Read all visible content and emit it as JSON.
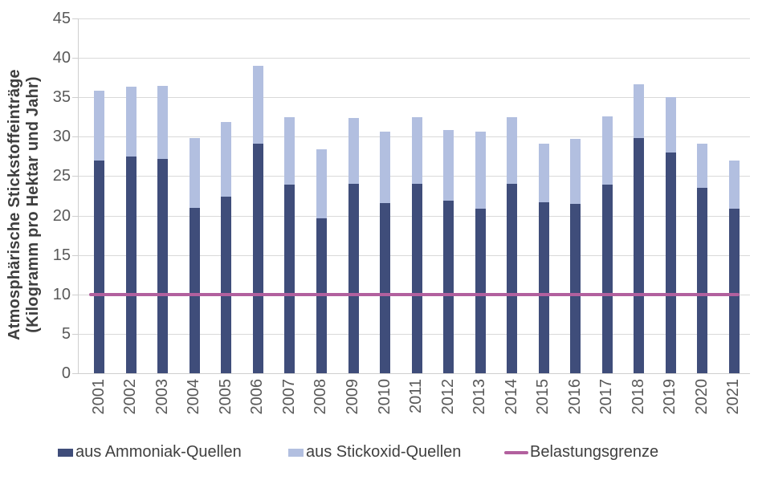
{
  "colors": {
    "background": "#ffffff",
    "gridline": "#d9d9d9",
    "axis_line": "#cfcfcf",
    "tick_text": "#595959",
    "legend_text": "#404040",
    "title_text": "#3f3f3f"
  },
  "y_axis": {
    "title_line1": "Atmosphärische Stickstoffeinträge",
    "title_line2": "(Kilogramm pro Hektar und Jahr)",
    "ticks": [
      0,
      5,
      10,
      15,
      20,
      25,
      30,
      35,
      40,
      45
    ]
  },
  "chart_data": {
    "type": "bar",
    "stacked": true,
    "title": "",
    "xlabel": "",
    "ylabel": "Atmosphärische Stickstoffeinträge (Kilogramm pro Hektar und Jahr)",
    "ylim": [
      0,
      45
    ],
    "ytick_step": 5,
    "grid": true,
    "legend_position": "bottom",
    "categories": [
      "2001",
      "2002",
      "2003",
      "2004",
      "2005",
      "2006",
      "2007",
      "2008",
      "2009",
      "2010",
      "2011",
      "2012",
      "2013",
      "2014",
      "2015",
      "2016",
      "2017",
      "2018",
      "2019",
      "2020",
      "2021"
    ],
    "series": [
      {
        "name": "aus Ammoniak-Quellen",
        "color": "#3f4d7a",
        "values": [
          27.0,
          27.5,
          27.2,
          21.0,
          22.4,
          29.1,
          23.9,
          19.7,
          24.0,
          21.6,
          24.0,
          21.9,
          20.9,
          24.0,
          21.7,
          21.5,
          23.9,
          29.8,
          28.0,
          23.5,
          20.9
        ]
      },
      {
        "name": "aus Stickoxid-Quellen",
        "color": "#b2bfe0",
        "values": [
          8.8,
          8.9,
          9.3,
          8.8,
          9.5,
          9.9,
          8.6,
          8.7,
          8.4,
          9.0,
          8.5,
          9.0,
          9.7,
          8.5,
          7.4,
          8.2,
          8.7,
          6.9,
          7.0,
          5.6,
          6.1
        ]
      }
    ],
    "totals": [
      35.8,
      36.4,
      36.5,
      29.8,
      31.9,
      39.0,
      32.5,
      28.4,
      32.4,
      30.6,
      32.5,
      30.9,
      30.6,
      32.5,
      29.1,
      29.7,
      32.6,
      36.7,
      35.0,
      29.1,
      27.0
    ],
    "reference_line": {
      "name": "Belastungsgrenze",
      "value": 10,
      "color": "#b2609e"
    }
  }
}
